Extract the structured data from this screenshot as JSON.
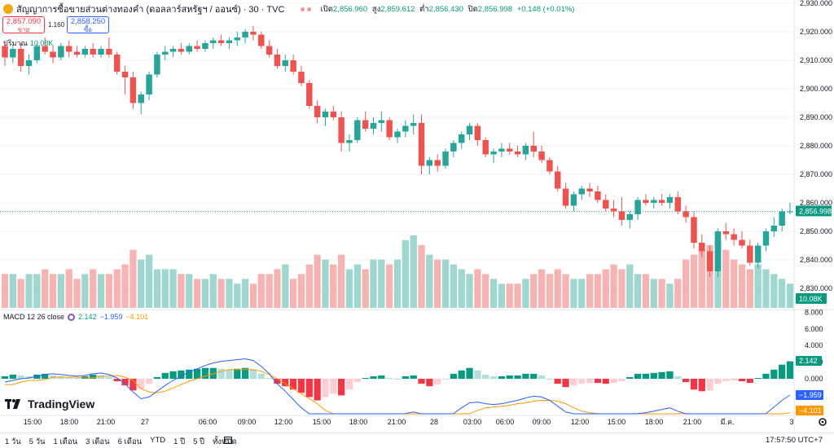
{
  "header": {
    "symbol_title": "สัญญาการซื้อขายส่วนต่างทองคำ (ดอลลาร์สหรัฐฯ / ออนซ์) · 30 · TVC",
    "open_label": "เปิด",
    "open": "2,856.960",
    "high_label": "สูง",
    "high": "2,859.612",
    "low_label": "ต่ำ",
    "low": "2,856.430",
    "close_label": "ปิด",
    "close": "2,856.998",
    "change": "+0.148 (+0.01%)"
  },
  "trade": {
    "sell_price": "2,857.090",
    "sell_label": "ขาย",
    "spread": "1.160",
    "buy_price": "2,858.250",
    "buy_label": "ซื้อ"
  },
  "volume": {
    "label": "ปริมาณ",
    "value": "10.08K"
  },
  "macd": {
    "label": "MACD 12 26 close",
    "hist": "2.142",
    "macd": "−1.959",
    "signal": "−4.101"
  },
  "brand": "TradingView",
  "bottom": {
    "ranges": [
      "1 วัน",
      "5 วัน",
      "1 เดือน",
      "3 เดือน",
      "6 เดือน",
      "YTD",
      "1 ปี",
      "5 ปี",
      "ทั้งหมด"
    ],
    "clock": "17:57:50 UTC+7"
  },
  "colors": {
    "up": "#26a69a",
    "down": "#ef5350",
    "macd": "#2962ff",
    "signal": "#ff9800"
  },
  "chart_data": {
    "type": "candlestick",
    "price_axis": [
      "2,930.000",
      "2,920.000",
      "2,910.000",
      "2,900.000",
      "2,890.000",
      "2,880.000",
      "2,870.000",
      "2,860.000",
      "2,850.000",
      "2,840.000",
      "2,830.000"
    ],
    "last_price_label": "2,856.998",
    "volume_label": "10.08K",
    "macd_axis": [
      "8.000",
      "6.000",
      "4.000",
      "2.000",
      "0.000"
    ],
    "macd_value_labels": {
      "hist": "2.142",
      "macd": "−1.959",
      "signal": "−4.101"
    },
    "time_labels": [
      "15:00",
      "18:00",
      "21:00",
      "27",
      "06:00",
      "09:00",
      "12:00",
      "15:00",
      "18:00",
      "21:00",
      "28",
      "03:00",
      "06:00",
      "09:00",
      "12:00",
      "15:00",
      "18:00",
      "21:00",
      "มี.ค.",
      "3"
    ],
    "ohlc": [
      [
        2915,
        2917,
        2908,
        2911
      ],
      [
        2911,
        2915,
        2909,
        2914
      ],
      [
        2914,
        2916,
        2906,
        2908
      ],
      [
        2908,
        2912,
        2905,
        2910
      ],
      [
        2910,
        2916,
        2909,
        2915
      ],
      [
        2915,
        2918,
        2912,
        2913
      ],
      [
        2913,
        2915,
        2909,
        2911
      ],
      [
        2911,
        2916,
        2910,
        2915
      ],
      [
        2915,
        2917,
        2911,
        2913
      ],
      [
        2913,
        2915,
        2911,
        2912
      ],
      [
        2912,
        2915,
        2911,
        2914
      ],
      [
        2914,
        2916,
        2911,
        2912
      ],
      [
        2912,
        2915,
        2911,
        2914
      ],
      [
        2914,
        2918,
        2911,
        2912
      ],
      [
        2912,
        2913,
        2905,
        2906
      ],
      [
        2906,
        2908,
        2898,
        2904
      ],
      [
        2904,
        2906,
        2893,
        2895
      ],
      [
        2895,
        2899,
        2891,
        2898
      ],
      [
        2898,
        2906,
        2896,
        2905
      ],
      [
        2905,
        2913,
        2904,
        2912
      ],
      [
        2912,
        2915,
        2910,
        2913
      ],
      [
        2913,
        2915,
        2911,
        2914
      ],
      [
        2914,
        2916,
        2912,
        2913
      ],
      [
        2913,
        2916,
        2912,
        2915
      ],
      [
        2915,
        2917,
        2913,
        2914
      ],
      [
        2914,
        2917,
        2913,
        2916
      ],
      [
        2916,
        2918,
        2914,
        2917
      ],
      [
        2917,
        2919,
        2915,
        2916
      ],
      [
        2916,
        2918,
        2914,
        2917
      ],
      [
        2917,
        2920,
        2915,
        2918
      ],
      [
        2918,
        2921,
        2916,
        2920
      ],
      [
        2920,
        2922,
        2917,
        2919
      ],
      [
        2919,
        2920,
        2914,
        2915
      ],
      [
        2915,
        2917,
        2911,
        2912
      ],
      [
        2912,
        2914,
        2907,
        2908
      ],
      [
        2908,
        2912,
        2906,
        2910
      ],
      [
        2910,
        2912,
        2905,
        2906
      ],
      [
        2906,
        2908,
        2901,
        2902
      ],
      [
        2902,
        2903,
        2893,
        2894
      ],
      [
        2894,
        2896,
        2888,
        2890
      ],
      [
        2890,
        2893,
        2887,
        2892
      ],
      [
        2892,
        2894,
        2889,
        2890
      ],
      [
        2890,
        2892,
        2878,
        2881
      ],
      [
        2881,
        2884,
        2878,
        2882
      ],
      [
        2882,
        2890,
        2881,
        2889
      ],
      [
        2889,
        2892,
        2885,
        2886
      ],
      [
        2886,
        2890,
        2884,
        2888
      ],
      [
        2888,
        2892,
        2885,
        2889
      ],
      [
        2889,
        2890,
        2882,
        2883
      ],
      [
        2883,
        2886,
        2881,
        2885
      ],
      [
        2885,
        2889,
        2883,
        2887
      ],
      [
        2887,
        2891,
        2884,
        2888
      ],
      [
        2888,
        2891,
        2870,
        2873
      ],
      [
        2873,
        2876,
        2870,
        2875
      ],
      [
        2875,
        2877,
        2871,
        2873
      ],
      [
        2873,
        2879,
        2872,
        2878
      ],
      [
        2878,
        2882,
        2876,
        2881
      ],
      [
        2881,
        2885,
        2879,
        2884
      ],
      [
        2884,
        2888,
        2882,
        2887
      ],
      [
        2887,
        2888,
        2880,
        2882
      ],
      [
        2882,
        2883,
        2876,
        2877
      ],
      [
        2877,
        2879,
        2874,
        2878
      ],
      [
        2878,
        2881,
        2876,
        2879
      ],
      [
        2879,
        2881,
        2877,
        2878
      ],
      [
        2878,
        2880,
        2876,
        2877
      ],
      [
        2877,
        2881,
        2875,
        2880
      ],
      [
        2880,
        2885,
        2876,
        2878
      ],
      [
        2878,
        2880,
        2874,
        2875
      ],
      [
        2875,
        2876,
        2870,
        2871
      ],
      [
        2871,
        2873,
        2864,
        2865
      ],
      [
        2865,
        2867,
        2858,
        2859
      ],
      [
        2859,
        2864,
        2857,
        2863
      ],
      [
        2863,
        2866,
        2861,
        2865
      ],
      [
        2865,
        2867,
        2862,
        2864
      ],
      [
        2864,
        2866,
        2860,
        2861
      ],
      [
        2861,
        2863,
        2857,
        2858
      ],
      [
        2858,
        2861,
        2855,
        2857
      ],
      [
        2857,
        2862,
        2852,
        2854
      ],
      [
        2854,
        2857,
        2851,
        2856
      ],
      [
        2856,
        2862,
        2854,
        2861
      ],
      [
        2861,
        2863,
        2859,
        2860
      ],
      [
        2860,
        2862,
        2858,
        2861
      ],
      [
        2861,
        2863,
        2859,
        2860
      ],
      [
        2860,
        2863,
        2858,
        2862
      ],
      [
        2862,
        2864,
        2856,
        2857
      ],
      [
        2857,
        2859,
        2853,
        2855
      ],
      [
        2855,
        2857,
        2844,
        2846
      ],
      [
        2846,
        2849,
        2841,
        2843
      ],
      [
        2843,
        2845,
        2834,
        2836
      ],
      [
        2836,
        2851,
        2834,
        2850
      ],
      [
        2850,
        2853,
        2847,
        2849
      ],
      [
        2849,
        2851,
        2845,
        2847
      ],
      [
        2847,
        2850,
        2844,
        2845
      ],
      [
        2845,
        2847,
        2838,
        2839
      ],
      [
        2839,
        2846,
        2837,
        2845
      ],
      [
        2845,
        2851,
        2843,
        2850
      ],
      [
        2850,
        2855,
        2848,
        2852
      ],
      [
        2852,
        2858,
        2850,
        2857
      ],
      [
        2857,
        2860,
        2856,
        2857
      ]
    ],
    "volume": [
      7,
      7,
      6,
      7,
      7,
      8,
      7,
      7,
      8,
      6,
      7,
      8,
      7,
      7,
      8,
      9,
      12,
      10,
      11,
      8,
      8,
      8,
      7,
      7,
      6,
      6,
      7,
      6,
      6,
      5,
      6,
      5,
      7,
      7,
      8,
      9,
      6,
      7,
      9,
      11,
      10,
      9,
      11,
      8,
      9,
      8,
      10,
      10,
      9,
      10,
      14,
      15,
      13,
      11,
      10,
      10,
      9,
      8,
      7,
      8,
      7,
      6,
      5,
      5,
      5,
      6,
      7,
      8,
      7,
      8,
      7,
      6,
      6,
      7,
      7,
      8,
      9,
      8,
      9,
      7,
      7,
      6,
      6,
      5,
      6,
      10,
      11,
      12,
      13,
      14,
      12,
      10,
      9,
      8,
      9,
      8,
      7,
      6,
      5
    ],
    "macd_hist": [
      0.3,
      0.5,
      0.4,
      0.3,
      0.5,
      0.6,
      0.4,
      0.3,
      0.2,
      0.1,
      0.3,
      0.5,
      0.4,
      0.2,
      -0.3,
      -0.8,
      -1.4,
      -1.2,
      -0.6,
      0.2,
      0.7,
      0.9,
      1.0,
      1.1,
      1.2,
      1.3,
      1.3,
      1.2,
      1.1,
      1.2,
      1.3,
      1.1,
      0.6,
      0.1,
      -0.6,
      -0.9,
      -1.3,
      -1.7,
      -2.2,
      -2.6,
      -2.2,
      -1.8,
      -2.0,
      -1.3,
      -0.4,
      0.1,
      0.3,
      0.4,
      0.1,
      0.0,
      0.3,
      0.4,
      -0.6,
      -0.9,
      -0.7,
      -0.1,
      0.6,
      1.0,
      1.3,
      1.0,
      0.5,
      0.3,
      0.3,
      0.4,
      0.4,
      0.6,
      0.6,
      0.4,
      0.0,
      -0.6,
      -1.0,
      -0.8,
      -0.6,
      -0.5,
      -0.5,
      -0.6,
      -0.5,
      -0.3,
      0.2,
      0.6,
      0.6,
      0.7,
      0.8,
      0.9,
      0.3,
      -0.4,
      -1.3,
      -1.5,
      -1.4,
      -0.6,
      -0.3,
      -0.2,
      -0.3,
      -0.5,
      0.1,
      0.6,
      1.1,
      1.7,
      2.1
    ],
    "macd_line": [
      -0.4,
      -0.2,
      0.0,
      0.1,
      0.3,
      0.5,
      0.6,
      0.5,
      0.4,
      0.3,
      0.4,
      0.6,
      0.7,
      0.5,
      0.1,
      -0.6,
      -1.6,
      -2.4,
      -2.2,
      -1.5,
      -0.8,
      -0.2,
      0.3,
      0.8,
      1.2,
      1.6,
      1.9,
      2.1,
      2.2,
      2.3,
      2.4,
      2.2,
      1.5,
      0.6,
      -0.6,
      -1.5,
      -2.5,
      -3.5,
      -4.6,
      -5.6,
      -6.0,
      -6.2,
      -6.6,
      -6.3,
      -5.6,
      -5.0,
      -4.6,
      -4.4,
      -4.6,
      -4.6,
      -4.2,
      -4.0,
      -5.2,
      -5.6,
      -5.5,
      -4.9,
      -4.2,
      -3.5,
      -2.9,
      -2.8,
      -3.0,
      -3.1,
      -3.0,
      -2.8,
      -2.6,
      -2.3,
      -2.1,
      -2.2,
      -2.6,
      -3.3,
      -4.0,
      -4.3,
      -4.5,
      -4.6,
      -4.7,
      -4.9,
      -5.0,
      -5.0,
      -4.6,
      -4.2,
      -4.1,
      -3.9,
      -3.7,
      -3.5,
      -3.9,
      -4.6,
      -5.8,
      -6.3,
      -6.5,
      -6.0,
      -5.6,
      -5.4,
      -5.4,
      -5.6,
      -5.0,
      -4.2,
      -3.4,
      -2.6,
      -1.959
    ],
    "signal_line": [
      -0.7,
      -0.7,
      -0.4,
      -0.2,
      -0.2,
      -0.1,
      0.2,
      0.2,
      0.2,
      0.2,
      0.1,
      0.1,
      0.3,
      0.3,
      0.4,
      0.2,
      -0.2,
      -1.2,
      -1.6,
      -1.7,
      -1.5,
      -1.1,
      -0.7,
      -0.3,
      0.0,
      0.3,
      0.6,
      0.9,
      1.1,
      1.1,
      1.1,
      1.1,
      0.9,
      0.5,
      0.0,
      -0.6,
      -1.2,
      -1.8,
      -2.4,
      -3.0,
      -3.8,
      -4.4,
      -4.6,
      -5.0,
      -5.2,
      -5.1,
      -4.9,
      -4.8,
      -4.7,
      -4.6,
      -4.5,
      -4.4,
      -4.6,
      -4.7,
      -4.8,
      -4.8,
      -4.8,
      -4.5,
      -4.2,
      -3.8,
      -3.5,
      -3.4,
      -3.3,
      -3.2,
      -3.0,
      -2.9,
      -2.7,
      -2.6,
      -2.6,
      -2.7,
      -3.0,
      -3.5,
      -3.9,
      -4.1,
      -4.2,
      -4.3,
      -4.5,
      -4.7,
      -4.8,
      -4.8,
      -4.7,
      -4.6,
      -4.5,
      -4.4,
      -4.2,
      -4.2,
      -4.5,
      -4.8,
      -5.1,
      -5.4,
      -5.3,
      -5.2,
      -5.1,
      -5.1,
      -5.1,
      -4.8,
      -4.5,
      -4.3,
      -4.101
    ]
  }
}
